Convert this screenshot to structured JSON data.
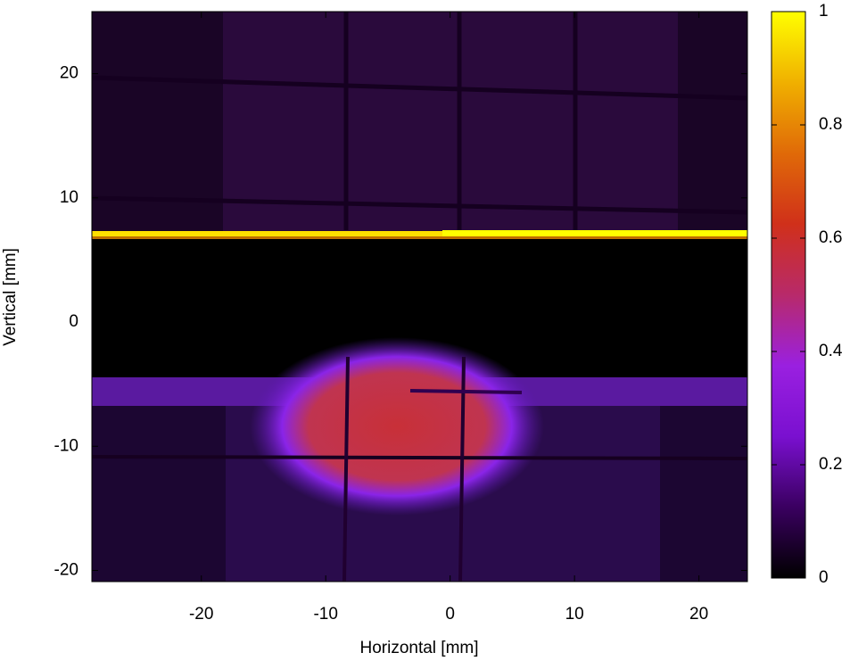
{
  "chart_data": {
    "type": "heatmap",
    "x_label": "Horizontal [mm]",
    "y_label": "Vertical [mm]",
    "xlim": [
      -28.8,
      23.9
    ],
    "xticks": [
      -20,
      -10,
      0,
      10,
      20
    ],
    "ylim": [
      -20.9,
      25
    ],
    "yticks": [
      -20,
      -10,
      0,
      10,
      20
    ],
    "clim": [
      0,
      1
    ],
    "cticks": [
      0,
      0.2,
      0.4,
      0.6,
      0.8,
      1
    ],
    "colormap": [
      "#000000",
      "#3a0060",
      "#7a10d0",
      "#9a20e0",
      "#b82a6a",
      "#d0301a",
      "#e06a08",
      "#f0b000",
      "#ffff00"
    ]
  }
}
